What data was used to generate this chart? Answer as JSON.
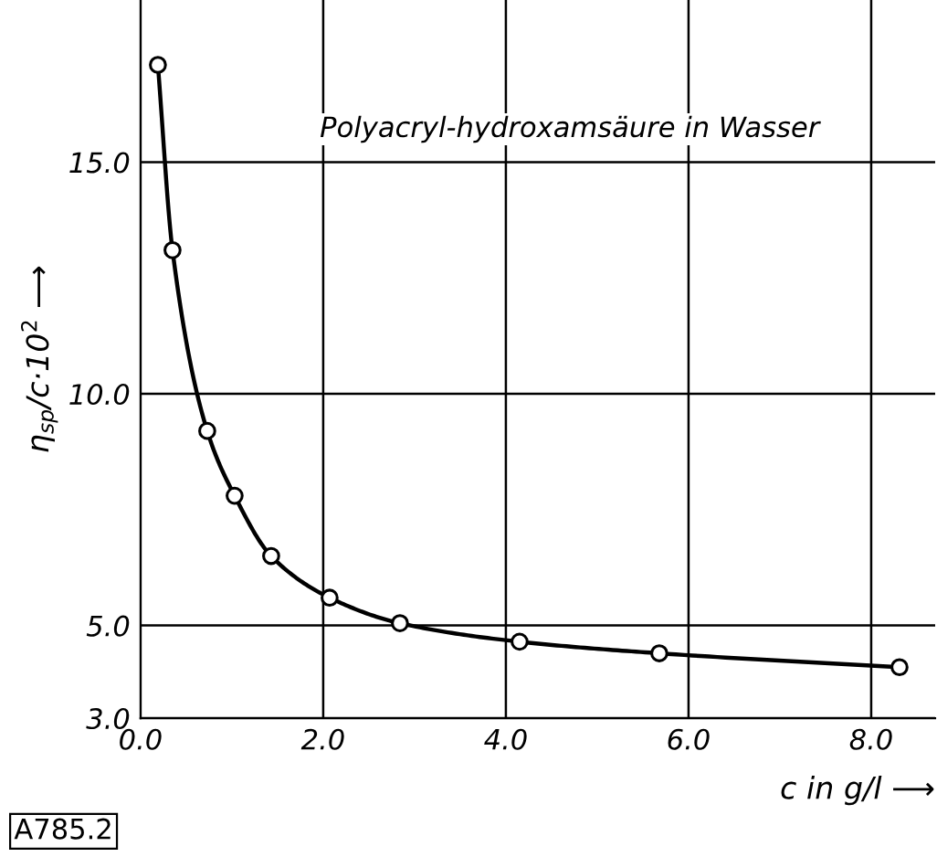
{
  "chart_data": {
    "type": "line",
    "title": "Polyacryl-hydroxamsäure in Wasser",
    "xlabel": "c in g/l ⟶",
    "ylabel": "η$_{sp}$/c·10$^{2}$ ⟶",
    "x": [
      0.19,
      0.35,
      0.73,
      1.03,
      1.43,
      2.07,
      2.84,
      4.15,
      5.68,
      8.31
    ],
    "series": [
      {
        "color": "#000000",
        "values": [
          17.1,
          13.1,
          9.2,
          7.8,
          6.5,
          5.6,
          5.05,
          4.65,
          4.4,
          4.1
        ]
      }
    ],
    "xlim": [
      0,
      8.7
    ],
    "ylim": [
      3,
      18.5
    ],
    "xticks": [
      {
        "value": 0,
        "label": "0.0"
      },
      {
        "value": 2,
        "label": "2.0"
      },
      {
        "value": 4,
        "label": "4.0"
      },
      {
        "value": 6,
        "label": "6.0"
      },
      {
        "value": 8,
        "label": "8.0"
      }
    ],
    "yticks": [
      {
        "value": 3,
        "label": "3.0"
      },
      {
        "value": 5,
        "label": "5.0"
      },
      {
        "value": 10,
        "label": "10.0"
      },
      {
        "value": 15,
        "label": "15.0"
      }
    ],
    "grid": true,
    "marker": "circle",
    "line_style": "solid",
    "annotations": [
      "A785.2"
    ]
  }
}
